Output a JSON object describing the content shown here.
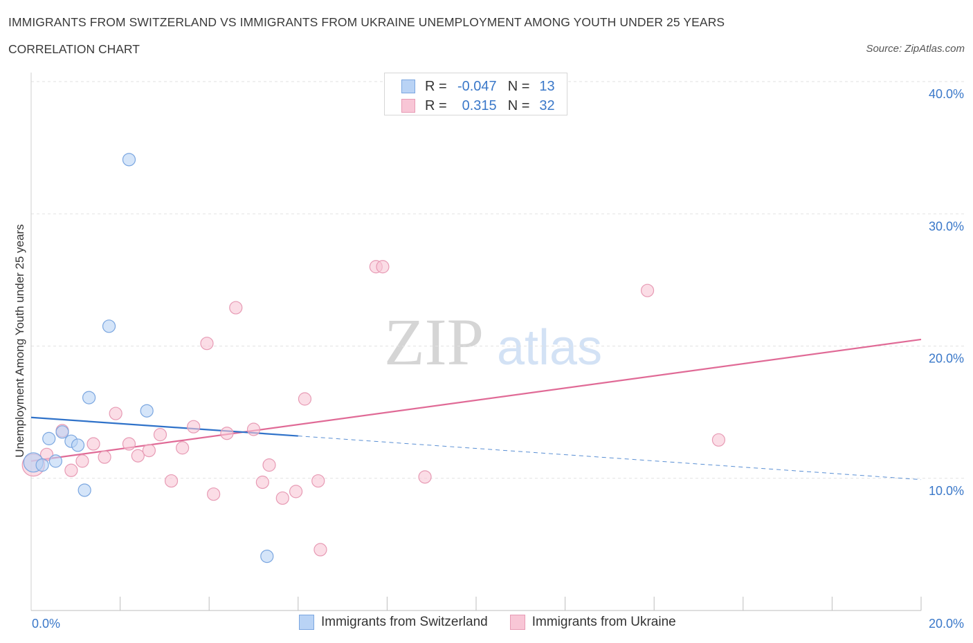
{
  "header": {
    "title": "IMMIGRANTS FROM SWITZERLAND VS IMMIGRANTS FROM UKRAINE UNEMPLOYMENT AMONG YOUTH UNDER 25 YEARS",
    "subtitle": "CORRELATION CHART",
    "source": "Source: ZipAtlas.com"
  },
  "legend_stats": {
    "switzerland": {
      "r_label": "R =",
      "r_value": "-0.047",
      "n_label": "N =",
      "n_value": "13"
    },
    "ukraine": {
      "r_label": "R =",
      "r_value": "0.315",
      "n_label": "N =",
      "n_value": "32"
    }
  },
  "watermark": {
    "zip": "ZIP",
    "atlas": "atlas"
  },
  "colors": {
    "switzerland_fill": "#b9d3f5",
    "switzerland_stroke": "#7aa6e0",
    "switzerland_line": "#2f72c9",
    "ukraine_fill": "#f8c6d6",
    "ukraine_stroke": "#e79ab4",
    "ukraine_line": "#e06a96",
    "tick_label": "#3a78c9"
  },
  "chart_data": {
    "type": "scatter",
    "title": "IMMIGRANTS FROM SWITZERLAND VS IMMIGRANTS FROM UKRAINE UNEMPLOYMENT AMONG YOUTH UNDER 25 YEARS",
    "xlabel": "",
    "ylabel": "Unemployment Among Youth under 25 years",
    "xlim": [
      0,
      20
    ],
    "ylim": [
      0,
      40
    ],
    "x_tick_labels": [
      "0.0%",
      "20.0%"
    ],
    "y_ticks": [
      10,
      20,
      30,
      40
    ],
    "y_tick_labels": [
      "10.0%",
      "20.0%",
      "30.0%",
      "40.0%"
    ],
    "grid": true,
    "legend_position": "bottom-center",
    "series": [
      {
        "name": "Immigrants from Switzerland",
        "color": "#b9d3f5",
        "points": [
          {
            "x": 0.05,
            "y": 11.2,
            "r": 14
          },
          {
            "x": 0.25,
            "y": 11.0,
            "r": 9
          },
          {
            "x": 0.4,
            "y": 13.0,
            "r": 9
          },
          {
            "x": 0.55,
            "y": 11.3,
            "r": 9
          },
          {
            "x": 0.7,
            "y": 13.5,
            "r": 9
          },
          {
            "x": 0.9,
            "y": 12.8,
            "r": 9
          },
          {
            "x": 1.05,
            "y": 12.5,
            "r": 9
          },
          {
            "x": 1.2,
            "y": 9.1,
            "r": 9
          },
          {
            "x": 1.3,
            "y": 16.1,
            "r": 9
          },
          {
            "x": 1.75,
            "y": 21.5,
            "r": 9
          },
          {
            "x": 2.2,
            "y": 34.1,
            "r": 9
          },
          {
            "x": 2.6,
            "y": 15.1,
            "r": 9
          },
          {
            "x": 5.3,
            "y": 4.1,
            "r": 9
          }
        ],
        "trend": {
          "x": [
            0,
            6
          ],
          "y": [
            14.6,
            13.2
          ],
          "dashed_x": [
            6,
            20
          ],
          "dashed_y": [
            13.2,
            9.9
          ]
        }
      },
      {
        "name": "Immigrants from Ukraine",
        "color": "#f8c6d6",
        "points": [
          {
            "x": 0.05,
            "y": 11.0,
            "r": 16
          },
          {
            "x": 0.35,
            "y": 11.8,
            "r": 9
          },
          {
            "x": 0.7,
            "y": 13.6,
            "r": 9
          },
          {
            "x": 0.9,
            "y": 10.6,
            "r": 9
          },
          {
            "x": 1.15,
            "y": 11.3,
            "r": 9
          },
          {
            "x": 1.4,
            "y": 12.6,
            "r": 9
          },
          {
            "x": 1.65,
            "y": 11.6,
            "r": 9
          },
          {
            "x": 1.9,
            "y": 14.9,
            "r": 9
          },
          {
            "x": 2.2,
            "y": 12.6,
            "r": 9
          },
          {
            "x": 2.4,
            "y": 11.7,
            "r": 9
          },
          {
            "x": 2.65,
            "y": 12.1,
            "r": 9
          },
          {
            "x": 2.9,
            "y": 13.3,
            "r": 9
          },
          {
            "x": 3.15,
            "y": 9.8,
            "r": 9
          },
          {
            "x": 3.4,
            "y": 12.3,
            "r": 9
          },
          {
            "x": 3.65,
            "y": 13.9,
            "r": 9
          },
          {
            "x": 3.95,
            "y": 20.2,
            "r": 9
          },
          {
            "x": 4.1,
            "y": 8.8,
            "r": 9
          },
          {
            "x": 4.4,
            "y": 13.4,
            "r": 9
          },
          {
            "x": 4.6,
            "y": 22.9,
            "r": 9
          },
          {
            "x": 5.0,
            "y": 13.7,
            "r": 9
          },
          {
            "x": 5.2,
            "y": 9.7,
            "r": 9
          },
          {
            "x": 5.35,
            "y": 11.0,
            "r": 9
          },
          {
            "x": 5.65,
            "y": 8.5,
            "r": 9
          },
          {
            "x": 5.95,
            "y": 9.0,
            "r": 9
          },
          {
            "x": 6.15,
            "y": 16.0,
            "r": 9
          },
          {
            "x": 6.45,
            "y": 9.8,
            "r": 9
          },
          {
            "x": 6.5,
            "y": 4.6,
            "r": 9
          },
          {
            "x": 7.75,
            "y": 26.0,
            "r": 9
          },
          {
            "x": 7.9,
            "y": 26.0,
            "r": 9
          },
          {
            "x": 8.85,
            "y": 10.1,
            "r": 9
          },
          {
            "x": 13.85,
            "y": 24.2,
            "r": 9
          },
          {
            "x": 15.45,
            "y": 12.9,
            "r": 9
          }
        ],
        "trend": {
          "x": [
            0,
            20
          ],
          "y": [
            11.3,
            20.5
          ]
        }
      }
    ]
  },
  "bottom_legend": {
    "switzerland_label": "Immigrants from Switzerland",
    "ukraine_label": "Immigrants from Ukraine"
  }
}
